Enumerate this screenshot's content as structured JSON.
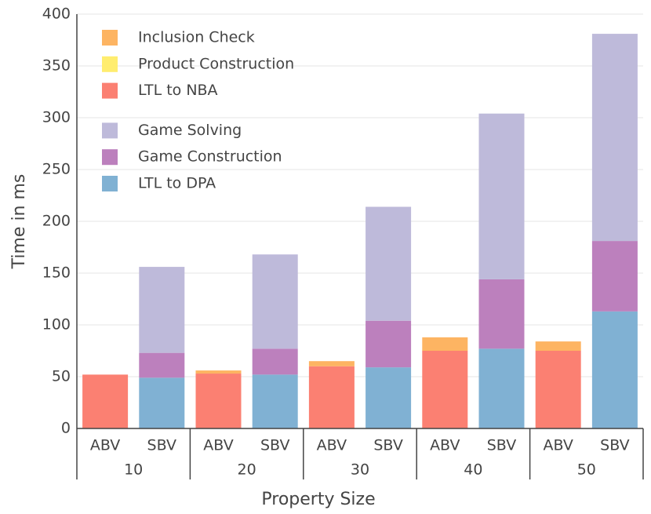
{
  "chart_data": {
    "type": "bar",
    "stacked": true,
    "x_label": "Property Size",
    "y_label": "Time in ms",
    "categories": [
      "ABV",
      "SBV",
      "ABV",
      "SBV",
      "ABV",
      "SBV",
      "ABV",
      "SBV",
      "ABV",
      "SBV"
    ],
    "groups": [
      "10",
      "20",
      "30",
      "40",
      "50"
    ],
    "series": [
      {
        "name": "LTL to NBA",
        "color": "#fb8072",
        "values": [
          52,
          null,
          53,
          null,
          60,
          null,
          75,
          null,
          75,
          null
        ]
      },
      {
        "name": "Product Construction",
        "color": "#ffed6f",
        "values": [
          0,
          null,
          0,
          null,
          0,
          null,
          0,
          null,
          0,
          null
        ]
      },
      {
        "name": "Inclusion Check",
        "color": "#fdb462",
        "values": [
          0,
          null,
          3,
          null,
          5,
          null,
          13,
          null,
          9,
          null
        ]
      },
      {
        "name": "LTL to DPA",
        "color": "#80b1d3",
        "values": [
          null,
          49,
          null,
          52,
          null,
          59,
          null,
          77,
          null,
          113
        ]
      },
      {
        "name": "Game Construction",
        "color": "#bc80bd",
        "values": [
          null,
          24,
          null,
          25,
          null,
          45,
          null,
          67,
          null,
          68
        ]
      },
      {
        "name": "Game Solving",
        "color": "#bebada",
        "values": [
          null,
          83,
          null,
          91,
          null,
          110,
          null,
          160,
          null,
          200
        ]
      }
    ],
    "ylim": [
      0,
      400
    ],
    "yticks": [
      0,
      50,
      100,
      150,
      200,
      250,
      300,
      350,
      400
    ],
    "grid": true
  }
}
